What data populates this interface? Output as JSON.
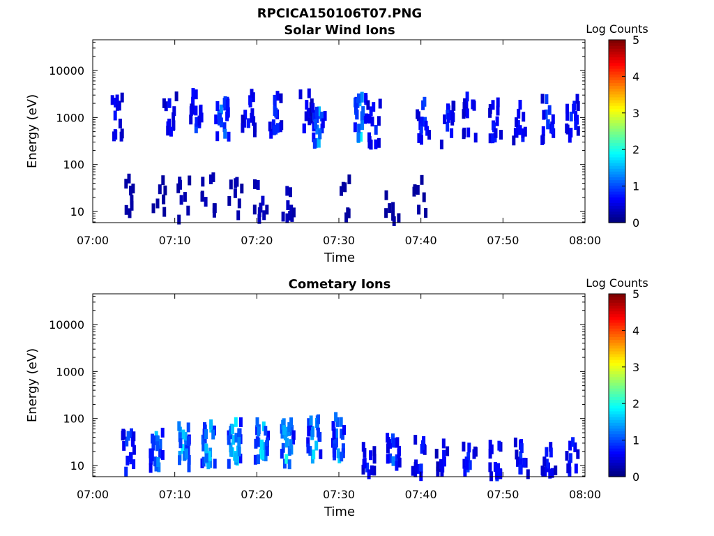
{
  "figure_title": "RPCICA150106T07.PNG",
  "chart_data": [
    {
      "type": "heatmap",
      "title": "Solar Wind Ions",
      "xlabel": "Time",
      "ylabel": "Energy (eV)",
      "x_ticks": [
        "07:00",
        "07:10",
        "07:20",
        "07:30",
        "07:40",
        "07:50",
        "08:00"
      ],
      "y_ticks": [
        "10",
        "100",
        "1000",
        "10000"
      ],
      "y_scale": "log",
      "ylim": [
        5.8,
        45000
      ],
      "colorbar": {
        "label": "Log Counts",
        "ticks": [
          "0",
          "1",
          "2",
          "3",
          "4",
          "5"
        ],
        "range": [
          0,
          5
        ]
      },
      "clusters": [
        {
          "t": 2.6,
          "e": 1000,
          "s": 0.7
        },
        {
          "t": 4.4,
          "e": 18,
          "s": 0.15
        },
        {
          "t": 7.9,
          "e": 18,
          "s": 0.1
        },
        {
          "t": 9.2,
          "e": 1200,
          "s": 0.6
        },
        {
          "t": 10.8,
          "e": 18,
          "s": 0.2
        },
        {
          "t": 12.5,
          "e": 1300,
          "s": 0.9
        },
        {
          "t": 13.9,
          "e": 20,
          "s": 0.3
        },
        {
          "t": 15.6,
          "e": 1100,
          "s": 1.4
        },
        {
          "t": 17.2,
          "e": 20,
          "s": 0.2
        },
        {
          "t": 18.8,
          "e": 1300,
          "s": 0.8
        },
        {
          "t": 20.3,
          "e": 18,
          "s": 0.3
        },
        {
          "t": 22.0,
          "e": 1200,
          "s": 0.9
        },
        {
          "t": 23.6,
          "e": 18,
          "s": 0.3
        },
        {
          "t": 25.7,
          "e": 1300,
          "s": 0.6
        },
        {
          "t": 27.3,
          "e": 700,
          "s": 1.4
        },
        {
          "t": 30.3,
          "e": 20,
          "s": 0.1
        },
        {
          "t": 32.4,
          "e": 1000,
          "s": 1.7
        },
        {
          "t": 34.1,
          "e": 700,
          "s": 0.9
        },
        {
          "t": 36.3,
          "e": 12,
          "s": 0.1
        },
        {
          "t": 39.6,
          "e": 18,
          "s": 0.1
        },
        {
          "t": 40.1,
          "e": 900,
          "s": 0.9
        },
        {
          "t": 43.1,
          "e": 700,
          "s": 0.8
        },
        {
          "t": 45.8,
          "e": 1000,
          "s": 0.8
        },
        {
          "t": 48.8,
          "e": 1000,
          "s": 0.7
        },
        {
          "t": 51.9,
          "e": 900,
          "s": 0.8
        },
        {
          "t": 55.3,
          "e": 900,
          "s": 1.0
        },
        {
          "t": 58.3,
          "e": 900,
          "s": 0.9
        }
      ]
    },
    {
      "type": "heatmap",
      "title": "Cometary Ions",
      "xlabel": "Time",
      "ylabel": "Energy (eV)",
      "x_ticks": [
        "07:00",
        "07:10",
        "07:20",
        "07:30",
        "07:40",
        "07:50",
        "08:00"
      ],
      "y_ticks": [
        "10",
        "100",
        "1000",
        "10000"
      ],
      "y_scale": "log",
      "ylim": [
        5.8,
        45000
      ],
      "colorbar": {
        "label": "Log Counts",
        "ticks": [
          "0",
          "1",
          "2",
          "3",
          "4",
          "5"
        ],
        "range": [
          0,
          5
        ]
      },
      "clusters": [
        {
          "t": 4.2,
          "e": 18,
          "s": 1.0
        },
        {
          "t": 7.6,
          "e": 25,
          "s": 1.5
        },
        {
          "t": 10.8,
          "e": 25,
          "s": 1.8
        },
        {
          "t": 13.9,
          "e": 30,
          "s": 1.9
        },
        {
          "t": 17.1,
          "e": 30,
          "s": 2.0
        },
        {
          "t": 20.4,
          "e": 30,
          "s": 1.8
        },
        {
          "t": 23.5,
          "e": 30,
          "s": 1.9
        },
        {
          "t": 26.8,
          "e": 35,
          "s": 1.7
        },
        {
          "t": 29.8,
          "e": 40,
          "s": 1.6
        },
        {
          "t": 33.4,
          "e": 15,
          "s": 0.8
        },
        {
          "t": 36.4,
          "e": 15,
          "s": 1.1
        },
        {
          "t": 39.6,
          "e": 15,
          "s": 0.9
        },
        {
          "t": 42.5,
          "e": 12,
          "s": 0.6
        },
        {
          "t": 45.7,
          "e": 12,
          "s": 0.9
        },
        {
          "t": 48.9,
          "e": 12,
          "s": 0.9
        },
        {
          "t": 52.1,
          "e": 12,
          "s": 0.9
        },
        {
          "t": 55.4,
          "e": 12,
          "s": 0.8
        },
        {
          "t": 58.2,
          "e": 12,
          "s": 0.8
        }
      ]
    }
  ]
}
